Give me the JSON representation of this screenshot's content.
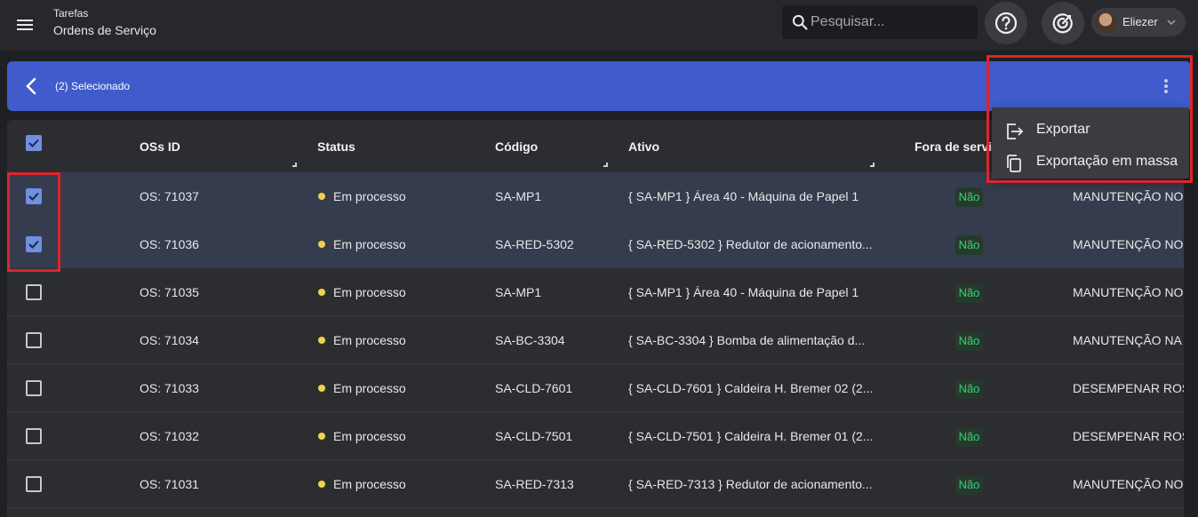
{
  "header": {
    "breadcrumb_parent": "Tarefas",
    "page_title": "Ordens de Serviço",
    "search_placeholder": "Pesquisar...",
    "user_name": "Eliezer"
  },
  "selection_bar": {
    "selected_text": "(2) Selecionado"
  },
  "menu": {
    "items": [
      {
        "label": "Exportar",
        "icon": "export-icon"
      },
      {
        "label": "Exportação em massa",
        "icon": "copy-icon"
      }
    ]
  },
  "table": {
    "columns": [
      "OSs ID",
      "Status",
      "Código",
      "Ativo",
      "Fora de servi"
    ],
    "rows": [
      {
        "checked": true,
        "id": "OS: 71037",
        "status": "Em processo",
        "codigo": "SA-MP1",
        "ativo": "{ SA-MP1 } Área 40 - Máquina de Papel 1",
        "fora": "Não",
        "desc": "MANUTENÇÃO NO S"
      },
      {
        "checked": true,
        "id": "OS: 71036",
        "status": "Em processo",
        "codigo": "SA-RED-5302",
        "ativo": "{ SA-RED-5302 } Redutor de acionamento...",
        "fora": "Não",
        "desc": "MANUTENÇÃO NO I"
      },
      {
        "checked": false,
        "id": "OS: 71035",
        "status": "Em processo",
        "codigo": "SA-MP1",
        "ativo": "{ SA-MP1 } Área 40 - Máquina de Papel 1",
        "fora": "Não",
        "desc": "MANUTENÇÃO NO C"
      },
      {
        "checked": false,
        "id": "OS: 71034",
        "status": "Em processo",
        "codigo": "SA-BC-3304",
        "ativo": "{ SA-BC-3304 } Bomba de alimentação d...",
        "fora": "Não",
        "desc": "MANUTENÇÃO NA I"
      },
      {
        "checked": false,
        "id": "OS: 71033",
        "status": "Em processo",
        "codigo": "SA-CLD-7601",
        "ativo": "{ SA-CLD-7601 } Caldeira H. Bremer 02 (2...",
        "fora": "Não",
        "desc": "DESEMPENAR ROSC"
      },
      {
        "checked": false,
        "id": "OS: 71032",
        "status": "Em processo",
        "codigo": "SA-CLD-7501",
        "ativo": "{ SA-CLD-7501 } Caldeira H. Bremer 01 (2...",
        "fora": "Não",
        "desc": "DESEMPENAR ROSC"
      },
      {
        "checked": false,
        "id": "OS: 71031",
        "status": "Em processo",
        "codigo": "SA-RED-7313",
        "ativo": "{ SA-RED-7313 } Redutor de acionamento...",
        "fora": "Não",
        "desc": "MANUTENÇÃO NO I"
      }
    ]
  },
  "colors": {
    "accent_blue": "#3f5bcc",
    "checkbox_blue": "#6f8fe0",
    "status_yellow": "#f5cf4a",
    "badge_green": "#3ecf7a",
    "highlight_red": "#e0242c"
  }
}
